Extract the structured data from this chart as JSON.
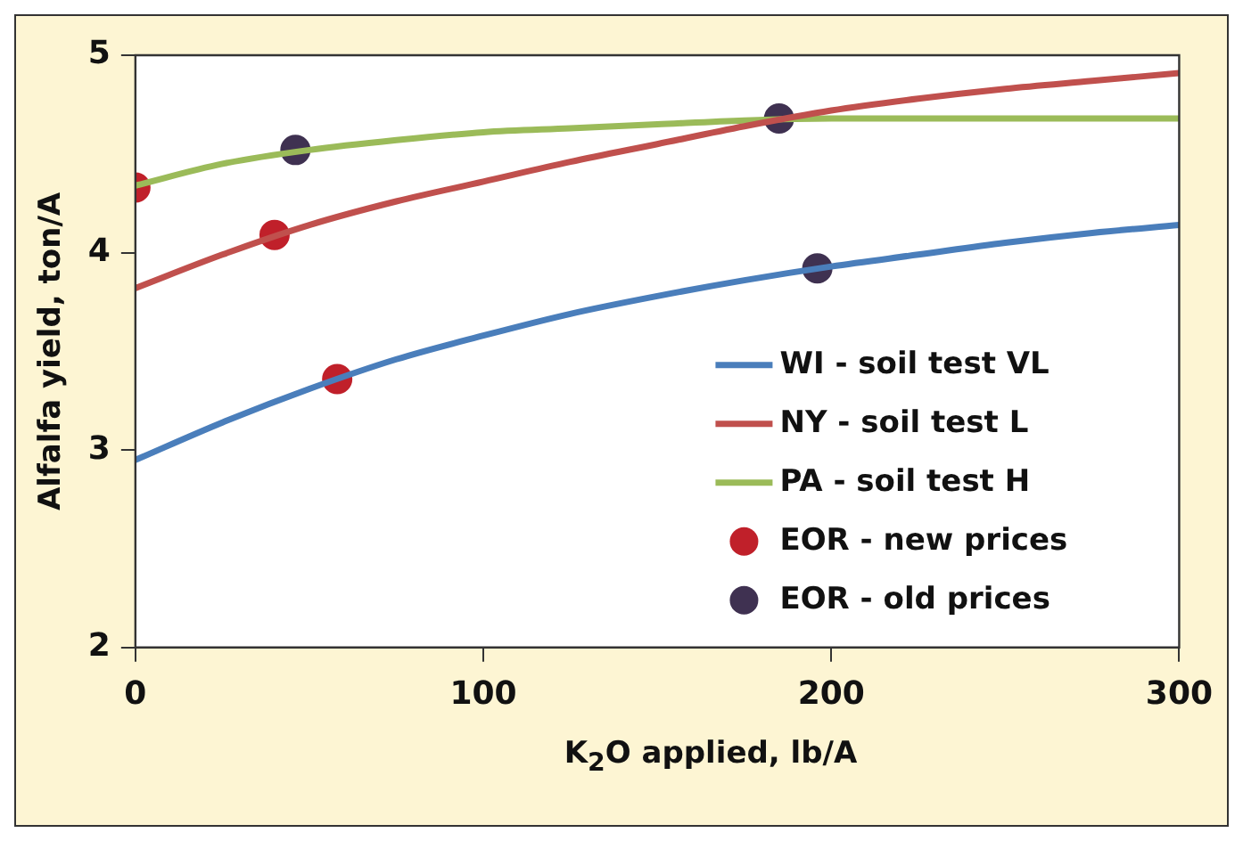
{
  "chart_data": {
    "type": "line",
    "xlabel": "K$_{2}$O applied, lb/A",
    "ylabel": "Alfalfa yield, ton/A",
    "xlim": [
      0,
      300
    ],
    "xticks": [
      0,
      100,
      200,
      300
    ],
    "ylim": [
      2,
      5
    ],
    "yticks": [
      2,
      3,
      4,
      5
    ],
    "grid": false,
    "legend": "bottom right",
    "marker": "none",
    "line_style": "solid",
    "series": [
      {
        "name": "WI - soil test VL",
        "color": "#4a7ebb",
        "x": [
          0,
          25,
          50,
          75,
          100,
          125,
          150,
          175,
          200,
          225,
          250,
          275,
          300
        ],
        "values": [
          2.95,
          3.14,
          3.31,
          3.46,
          3.58,
          3.69,
          3.78,
          3.86,
          3.93,
          3.99,
          4.05,
          4.1,
          4.14
        ]
      },
      {
        "name": "NY - soil test L",
        "color": "#c0504d",
        "x": [
          0,
          25,
          50,
          75,
          100,
          125,
          150,
          175,
          200,
          225,
          250,
          275,
          300
        ],
        "values": [
          3.82,
          3.99,
          4.14,
          4.26,
          4.36,
          4.46,
          4.55,
          4.64,
          4.72,
          4.78,
          4.83,
          4.87,
          4.91
        ]
      },
      {
        "name": "PA - soil test H",
        "color": "#9bbb59",
        "x": [
          0,
          25,
          50,
          75,
          100,
          125,
          150,
          175,
          200,
          250,
          300
        ],
        "values": [
          4.34,
          4.45,
          4.52,
          4.57,
          4.61,
          4.63,
          4.65,
          4.67,
          4.68,
          4.68,
          4.68
        ]
      },
      {
        "name": "EOR - new prices",
        "type": "scatter",
        "marker": "circle",
        "color": "#c0202a",
        "x": [
          0,
          40,
          58
        ],
        "values": [
          4.33,
          4.09,
          3.36
        ]
      },
      {
        "name": "EOR - old prices",
        "type": "scatter",
        "marker": "circle",
        "color": "#3f3151",
        "x": [
          46,
          185,
          196
        ],
        "values": [
          4.52,
          4.68,
          3.92
        ]
      }
    ]
  }
}
